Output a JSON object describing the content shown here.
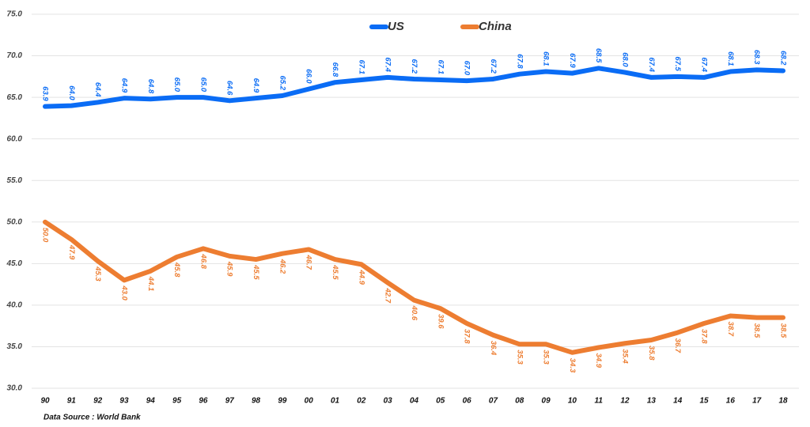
{
  "chart_data": {
    "type": "line",
    "categories": [
      "90",
      "91",
      "92",
      "93",
      "94",
      "95",
      "96",
      "97",
      "98",
      "99",
      "00",
      "01",
      "02",
      "03",
      "04",
      "05",
      "06",
      "07",
      "08",
      "09",
      "10",
      "11",
      "12",
      "13",
      "14",
      "15",
      "16",
      "17",
      "18"
    ],
    "series": [
      {
        "name": "US",
        "color": "#0a6cf5",
        "values": [
          63.9,
          64.0,
          64.4,
          64.9,
          64.8,
          65.0,
          65.0,
          64.6,
          64.9,
          65.2,
          66.0,
          66.8,
          67.1,
          67.4,
          67.2,
          67.1,
          67.0,
          67.2,
          67.8,
          68.1,
          67.9,
          68.5,
          68.0,
          67.4,
          67.5,
          67.4,
          68.1,
          68.3,
          68.2
        ],
        "value_labels": [
          "63.9",
          "64.0",
          "64.4",
          "64.9",
          "64.8",
          "65.0",
          "65.0",
          "64.6",
          "64.9",
          "65.2",
          "66.0",
          "66.8",
          "67.1",
          "67.4",
          "67.2",
          "67.1",
          "67.0",
          "67.2",
          "67.8",
          "68.1",
          "67.9",
          "68.5",
          "68.0",
          "67.4",
          "67.5",
          "67.4",
          "68.1",
          "68.3",
          "68.2"
        ]
      },
      {
        "name": "China",
        "color": "#ed7d31",
        "values": [
          50.0,
          47.9,
          45.3,
          43.0,
          44.1,
          45.8,
          46.8,
          45.9,
          45.5,
          46.2,
          46.7,
          45.5,
          44.9,
          42.7,
          40.6,
          39.6,
          37.8,
          36.4,
          35.3,
          35.3,
          34.3,
          34.9,
          35.4,
          35.8,
          36.7,
          37.8,
          38.7,
          38.5,
          38.5
        ],
        "value_labels": [
          "50.0",
          "47.9",
          "45.3",
          "43.0",
          "44.1",
          "45.8",
          "46.8",
          "45.9",
          "45.5",
          "46.2",
          "46.7",
          "45.5",
          "44.9",
          "42.7",
          "40.6",
          "39.6",
          "37.8",
          "36.4",
          "35.3",
          "35.3",
          "34.3",
          "34.9",
          "35.4",
          "35.8",
          "36.7",
          "37.8",
          "38.7",
          "38.5",
          "38.5"
        ]
      }
    ],
    "ylim": [
      30,
      75
    ],
    "yticks": [
      {
        "value": 30,
        "label": "30.0"
      },
      {
        "value": 35,
        "label": "35.0"
      },
      {
        "value": 40,
        "label": "40.0"
      },
      {
        "value": 45,
        "label": "45.0"
      },
      {
        "value": 50,
        "label": "50.0"
      },
      {
        "value": 55,
        "label": "55.0"
      },
      {
        "value": 60,
        "label": "60.0"
      },
      {
        "value": 65,
        "label": "65.0"
      },
      {
        "value": 70,
        "label": "70.0"
      },
      {
        "value": 75,
        "label": "75.0"
      }
    ],
    "grid": true,
    "legend": "top",
    "source": "Data Source :  World Bank"
  }
}
